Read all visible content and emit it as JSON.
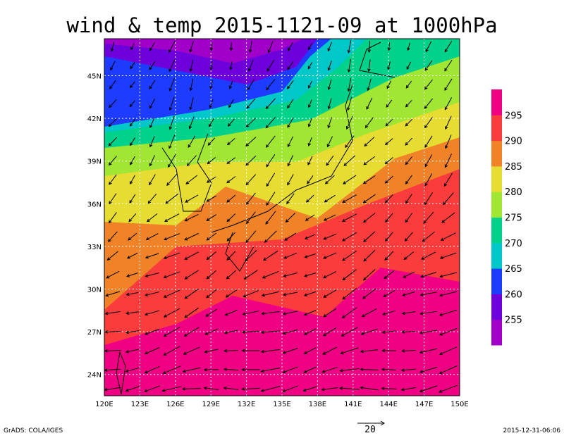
{
  "map": {
    "title": "wind & temp 2015-1121-09 at 1000hPa",
    "lon_range": [
      120,
      150
    ],
    "lat_range": [
      22.5,
      47.6
    ],
    "lon_ticks": [
      {
        "value": 120,
        "label": "120E"
      },
      {
        "value": 123,
        "label": "123E"
      },
      {
        "value": 126,
        "label": "126E"
      },
      {
        "value": 129,
        "label": "129E"
      },
      {
        "value": 132,
        "label": "132E"
      },
      {
        "value": 135,
        "label": "135E"
      },
      {
        "value": 138,
        "label": "138E"
      },
      {
        "value": 141,
        "label": "141E"
      },
      {
        "value": 144,
        "label": "144E"
      },
      {
        "value": 147,
        "label": "147E"
      },
      {
        "value": 150,
        "label": "150E"
      }
    ],
    "lat_ticks": [
      {
        "value": 24,
        "label": "24N"
      },
      {
        "value": 27,
        "label": "27N"
      },
      {
        "value": 30,
        "label": "30N"
      },
      {
        "value": 33,
        "label": "33N"
      },
      {
        "value": 36,
        "label": "36N"
      },
      {
        "value": 39,
        "label": "39N"
      },
      {
        "value": 42,
        "label": "42N"
      },
      {
        "value": 45,
        "label": "45N"
      }
    ],
    "colorbar": {
      "levels": [
        255,
        260,
        265,
        270,
        275,
        280,
        285,
        290,
        295
      ],
      "colors": [
        "#a000c8",
        "#6e00dc",
        "#1e3cff",
        "#00c8c8",
        "#00d28c",
        "#a0e632",
        "#e6dc32",
        "#f08228",
        "#fa3c3c",
        "#f00082"
      ]
    },
    "vector_scale": 20,
    "footer_left": "GrADS: COLA/IGES",
    "footer_right": "2015-12-31-06:06"
  }
}
